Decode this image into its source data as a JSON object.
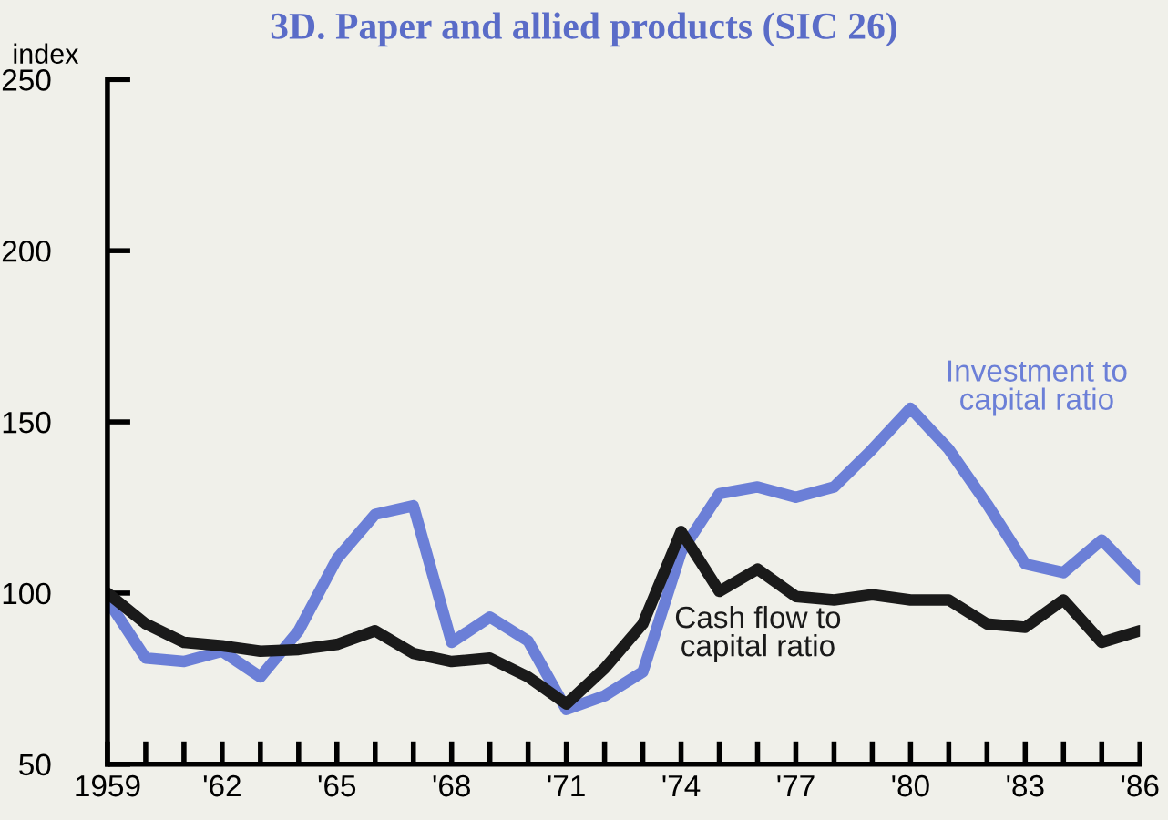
{
  "chart_data": {
    "type": "line",
    "title": "3D. Paper and allied products (SIC 26)",
    "ylabel": "index",
    "x": [
      1959,
      1960,
      1961,
      1962,
      1963,
      1964,
      1965,
      1966,
      1967,
      1968,
      1969,
      1970,
      1971,
      1972,
      1973,
      1974,
      1975,
      1976,
      1977,
      1978,
      1979,
      1980,
      1981,
      1982,
      1983,
      1984,
      1985,
      1986
    ],
    "series": [
      {
        "name": "Investment to capital ratio",
        "color": "#6b7fd7",
        "values": [
          98,
          81,
          80,
          83,
          75.5,
          89,
          110,
          123,
          125.5,
          85.6,
          93,
          86,
          66,
          70,
          77,
          112,
          129,
          131,
          128,
          131,
          142,
          154,
          142,
          126,
          108.5,
          106,
          115.5,
          104
        ]
      },
      {
        "name": "Cash flow to capital ratio",
        "color": "#1a1a1a",
        "values": [
          100,
          91,
          85.6,
          84.6,
          83,
          83.5,
          85,
          89,
          82.4,
          80,
          81,
          75.5,
          67.6,
          78,
          91,
          118,
          100.5,
          107,
          99,
          98,
          99.5,
          98,
          98,
          91,
          90,
          98,
          85.6,
          89
        ]
      }
    ],
    "xlim": [
      1959,
      1986
    ],
    "ylim": [
      50,
      250
    ],
    "xticks": [
      {
        "value": 1959,
        "label": "1959"
      },
      {
        "value": 1960,
        "label": null
      },
      {
        "value": 1961,
        "label": null
      },
      {
        "value": 1962,
        "label": "'62"
      },
      {
        "value": 1963,
        "label": null
      },
      {
        "value": 1964,
        "label": null
      },
      {
        "value": 1965,
        "label": "'65"
      },
      {
        "value": 1966,
        "label": null
      },
      {
        "value": 1967,
        "label": null
      },
      {
        "value": 1968,
        "label": "'68"
      },
      {
        "value": 1969,
        "label": null
      },
      {
        "value": 1970,
        "label": null
      },
      {
        "value": 1971,
        "label": "'71"
      },
      {
        "value": 1972,
        "label": null
      },
      {
        "value": 1973,
        "label": null
      },
      {
        "value": 1974,
        "label": "'74"
      },
      {
        "value": 1975,
        "label": null
      },
      {
        "value": 1976,
        "label": null
      },
      {
        "value": 1977,
        "label": "'77"
      },
      {
        "value": 1978,
        "label": null
      },
      {
        "value": 1979,
        "label": null
      },
      {
        "value": 1980,
        "label": "'80"
      },
      {
        "value": 1981,
        "label": null
      },
      {
        "value": 1982,
        "label": null
      },
      {
        "value": 1983,
        "label": "'83"
      },
      {
        "value": 1984,
        "label": null
      },
      {
        "value": 1985,
        "label": null
      },
      {
        "value": 1986,
        "label": "'86"
      }
    ],
    "yticks": [
      50,
      100,
      150,
      200,
      250
    ],
    "grid": false,
    "legend": false,
    "marker": "none",
    "line_style": "solid"
  }
}
